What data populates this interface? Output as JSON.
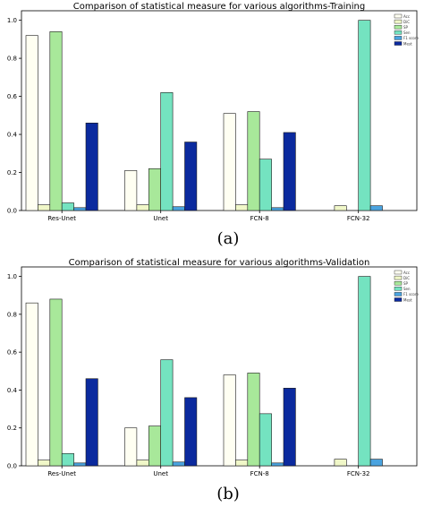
{
  "chart_data": [
    {
      "type": "bar",
      "title": "Comparison of statistical measure for various algorithms-Training",
      "caption": "(a)",
      "categories": [
        "Res-Unet",
        "Unet",
        "FCN-8",
        "FCN-32"
      ],
      "ylim": [
        0,
        1.05
      ],
      "yticks": [
        "0.0",
        "0.2",
        "0.4",
        "0.6",
        "0.8",
        "1.0"
      ],
      "legend_position": "top-right",
      "grid": false,
      "series": [
        {
          "name": "Acc",
          "color": "#fffff2",
          "values": [
            0.92,
            0.21,
            0.51,
            0.0
          ]
        },
        {
          "name": "DiC",
          "color": "#f0f7c8",
          "values": [
            0.03,
            0.03,
            0.03,
            0.025
          ]
        },
        {
          "name": "SP",
          "color": "#a8e89a",
          "values": [
            0.94,
            0.22,
            0.52,
            0.0
          ]
        },
        {
          "name": "Sen",
          "color": "#74e3c0",
          "values": [
            0.04,
            0.62,
            0.27,
            1.0
          ]
        },
        {
          "name": "F1 score",
          "color": "#4aa3df",
          "values": [
            0.015,
            0.02,
            0.015,
            0.025
          ]
        },
        {
          "name": "Mest",
          "color": "#0b2a9e",
          "values": [
            0.46,
            0.36,
            0.41,
            0.0
          ]
        }
      ]
    },
    {
      "type": "bar",
      "title": "Comparison of statistical measure for various algorithms-Validation",
      "caption": "(b)",
      "categories": [
        "Res-Unet",
        "Unet",
        "FCN-8",
        "FCN-32"
      ],
      "ylim": [
        0,
        1.05
      ],
      "yticks": [
        "0.0",
        "0.2",
        "0.4",
        "0.6",
        "0.8",
        "1.0"
      ],
      "legend_position": "top-right",
      "grid": false,
      "series": [
        {
          "name": "Acc",
          "color": "#fffff2",
          "values": [
            0.86,
            0.2,
            0.48,
            0.0
          ]
        },
        {
          "name": "DiC",
          "color": "#f0f7c8",
          "values": [
            0.03,
            0.03,
            0.03,
            0.035
          ]
        },
        {
          "name": "SP",
          "color": "#a8e89a",
          "values": [
            0.88,
            0.21,
            0.49,
            0.0
          ]
        },
        {
          "name": "Sen",
          "color": "#74e3c0",
          "values": [
            0.065,
            0.56,
            0.275,
            1.0
          ]
        },
        {
          "name": "F1 score",
          "color": "#4aa3df",
          "values": [
            0.015,
            0.02,
            0.015,
            0.035
          ]
        },
        {
          "name": "Mest",
          "color": "#0b2a9e",
          "values": [
            0.46,
            0.36,
            0.41,
            0.0
          ]
        }
      ]
    }
  ]
}
